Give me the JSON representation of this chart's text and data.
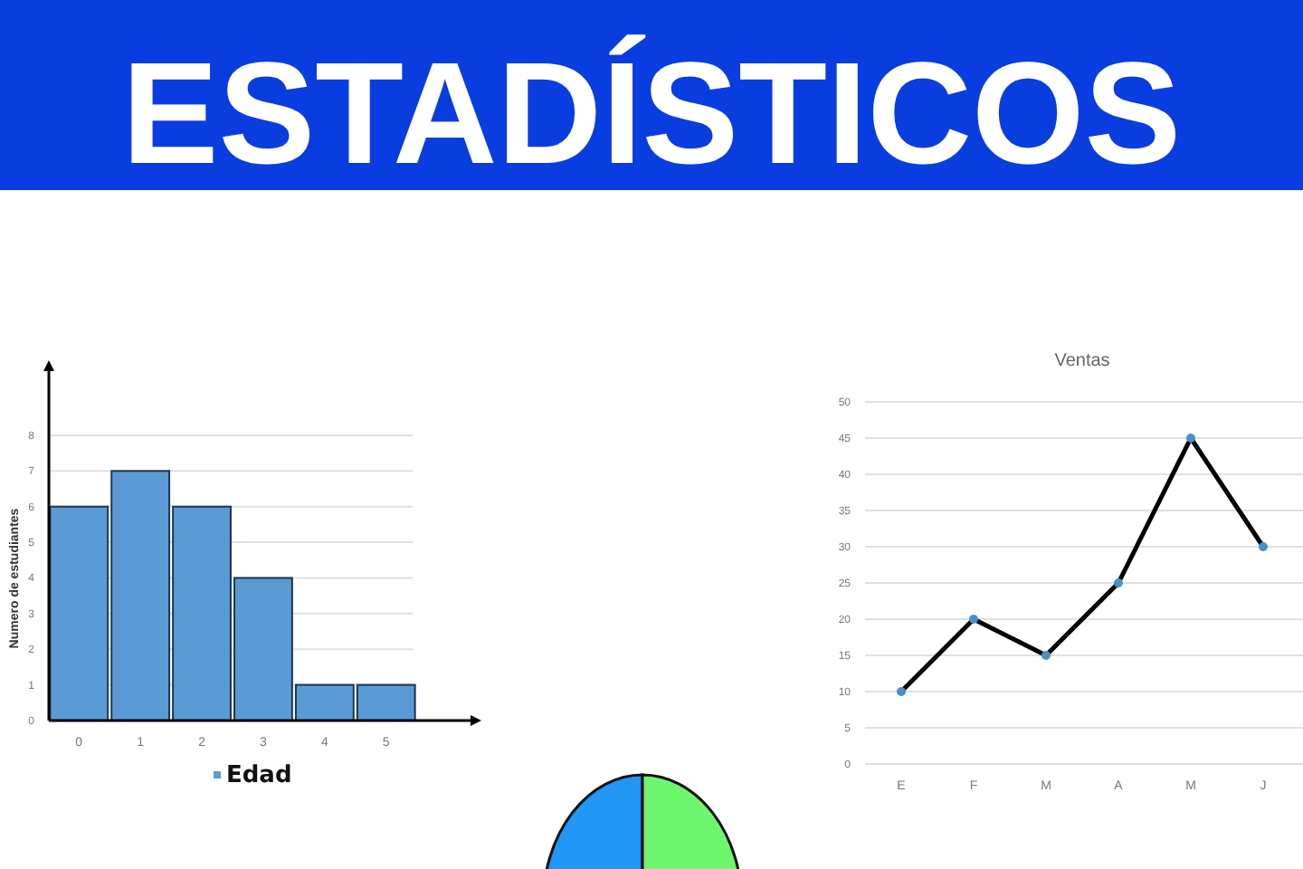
{
  "chart_data": [
    {
      "type": "other",
      "title": "ESTADÍSTICOS"
    },
    {
      "type": "bar",
      "ylabel": "Numero de estudiantes",
      "categories": [
        "0",
        "1",
        "2",
        "3",
        "4",
        "5"
      ],
      "series": [
        {
          "name": "Edad",
          "color": "#5b9bd5",
          "values": [
            6,
            7,
            6,
            4,
            1,
            1
          ]
        }
      ],
      "ylim": [
        0,
        9.8
      ],
      "yticks": [
        0,
        1,
        2,
        3,
        4,
        5,
        6,
        7,
        8
      ],
      "grid": "y",
      "legend": "bottom"
    },
    {
      "type": "line",
      "title": "Ventas",
      "categories": [
        "E",
        "F",
        "M",
        "A",
        "M",
        "J"
      ],
      "series": [
        {
          "color": "#000000",
          "values": [
            10,
            20,
            15,
            25,
            45,
            30
          ]
        }
      ],
      "ylim": [
        0,
        50
      ],
      "yticks": [
        0,
        5,
        10,
        15,
        20,
        25,
        30,
        35,
        40,
        45,
        50
      ],
      "grid": "y",
      "marker": "circle"
    }
  ]
}
